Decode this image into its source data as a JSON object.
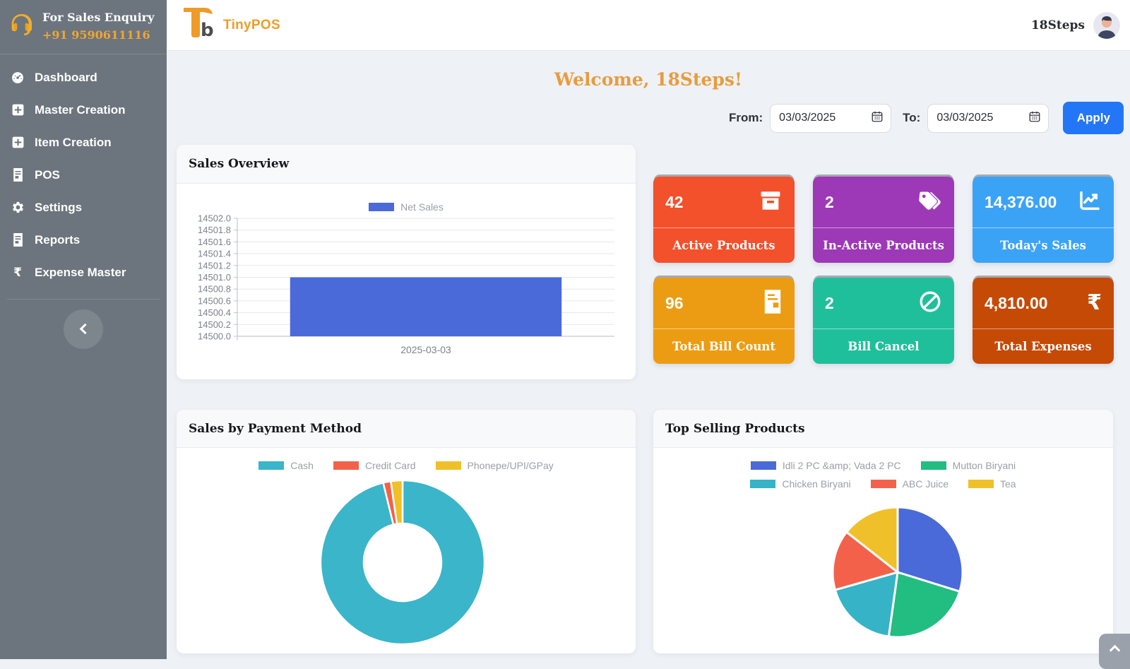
{
  "glyphs": {
    "rupee": "₹",
    "logo_b": "b"
  },
  "sidebar": {
    "enquiry_title": "For Sales Enquiry",
    "enquiry_phone": "+91 9590611116",
    "items": [
      {
        "label": "Dashboard",
        "icon": "tachometer-icon"
      },
      {
        "label": "Master Creation",
        "icon": "square-plus-icon"
      },
      {
        "label": "Item Creation",
        "icon": "square-plus-icon"
      },
      {
        "label": "POS",
        "icon": "file-invoice-icon"
      },
      {
        "label": "Settings",
        "icon": "gear-icon"
      },
      {
        "label": "Reports",
        "icon": "file-invoice-icon"
      },
      {
        "label": "Expense Master",
        "icon": "rupee-icon"
      }
    ]
  },
  "header": {
    "brand": "TinyPOS",
    "user": "18Steps"
  },
  "welcome": "Welcome, 18Steps!",
  "filter": {
    "from_label": "From:",
    "from_value": "03/03/2025",
    "to_label": "To:",
    "to_value": "03/03/2025",
    "apply_label": "Apply"
  },
  "stat_cards": [
    {
      "value": "42",
      "label": "Active Products",
      "color": "#f3502c",
      "icon": "box-archive-icon"
    },
    {
      "value": "2",
      "label": "In-Active Products",
      "color": "#9d38b7",
      "icon": "tags-icon"
    },
    {
      "value": "14,376.00",
      "label": "Today's Sales",
      "color": "#3ba3f6",
      "icon": "chart-line-icon"
    },
    {
      "value": "96",
      "label": "Total Bill Count",
      "color": "#ec9c13",
      "icon": "file-invoice-icon"
    },
    {
      "value": "2",
      "label": "Bill Cancel",
      "color": "#20bf9b",
      "icon": "ban-icon"
    },
    {
      "value": "4,810.00",
      "label": "Total Expenses",
      "color": "#c54a06",
      "icon": "rupee-icon"
    }
  ],
  "cards": {
    "sales_overview": "Sales Overview",
    "payment": "Sales by Payment Method",
    "top_products": "Top Selling Products"
  },
  "chart_data": [
    {
      "type": "bar",
      "title": "Sales Overview",
      "legend": [
        "Net Sales"
      ],
      "categories": [
        "2025-03-03"
      ],
      "values": [
        14501.0
      ],
      "ylim": [
        14500.0,
        14502.0
      ],
      "ytick_step": 0.2,
      "color": "#4a6ad9",
      "grid": true,
      "legend_position": "top"
    },
    {
      "type": "pie",
      "variant": "doughnut",
      "title": "Sales by Payment Method",
      "labels": [
        "Cash",
        "Credit Card",
        "Phonepe/UPI/GPay"
      ],
      "values": [
        96.2,
        1.5,
        2.3
      ],
      "colors": [
        "#3ab5c9",
        "#f4614b",
        "#efc02a"
      ],
      "legend_position": "top"
    },
    {
      "type": "pie",
      "title": "Top Selling Products",
      "labels": [
        "Idli 2 PC &amp; Vada 2 PC",
        "Mutton Biryani",
        "Chicken Biryani",
        "ABC Juice",
        "Tea"
      ],
      "values": [
        29.8,
        22.4,
        18.4,
        15.0,
        14.4
      ],
      "colors": [
        "#4a6ad9",
        "#22bd80",
        "#36b3c6",
        "#f4614b",
        "#efc02a"
      ],
      "legend_position": "top"
    }
  ]
}
